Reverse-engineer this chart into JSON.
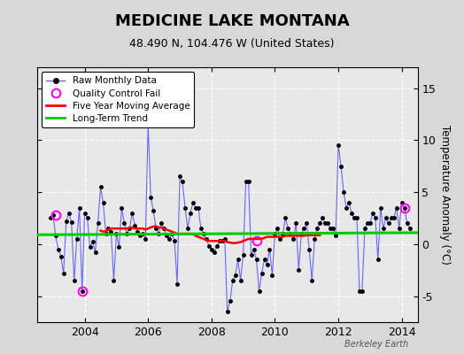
{
  "title": "MEDICINE LAKE MONTANA",
  "subtitle": "48.490 N, 104.476 W (United States)",
  "ylabel": "Temperature Anomaly (°C)",
  "credit": "Berkeley Earth",
  "bg_color": "#d8d8d8",
  "plot_bg_color": "#e8e8e8",
  "ylim": [
    -7.5,
    17
  ],
  "xlim": [
    2002.5,
    2014.5
  ],
  "yticks": [
    -5,
    0,
    5,
    10,
    15
  ],
  "xticks": [
    2004,
    2006,
    2008,
    2010,
    2012,
    2014
  ],
  "raw_data": [
    [
      2002.917,
      2.5
    ],
    [
      2003.0,
      2.8
    ],
    [
      2003.083,
      0.8
    ],
    [
      2003.167,
      -0.5
    ],
    [
      2003.25,
      -1.2
    ],
    [
      2003.333,
      -2.8
    ],
    [
      2003.417,
      2.2
    ],
    [
      2003.5,
      3.0
    ],
    [
      2003.583,
      2.1
    ],
    [
      2003.667,
      -3.5
    ],
    [
      2003.75,
      0.5
    ],
    [
      2003.833,
      3.5
    ],
    [
      2003.917,
      -4.5
    ],
    [
      2004.0,
      3.0
    ],
    [
      2004.083,
      2.5
    ],
    [
      2004.167,
      -0.3
    ],
    [
      2004.25,
      0.2
    ],
    [
      2004.333,
      -0.8
    ],
    [
      2004.417,
      2.0
    ],
    [
      2004.5,
      5.5
    ],
    [
      2004.583,
      4.0
    ],
    [
      2004.667,
      1.0
    ],
    [
      2004.75,
      1.5
    ],
    [
      2004.833,
      1.2
    ],
    [
      2004.917,
      -3.5
    ],
    [
      2005.0,
      1.0
    ],
    [
      2005.083,
      -0.3
    ],
    [
      2005.167,
      3.5
    ],
    [
      2005.25,
      2.0
    ],
    [
      2005.333,
      1.0
    ],
    [
      2005.417,
      1.5
    ],
    [
      2005.5,
      3.0
    ],
    [
      2005.583,
      1.8
    ],
    [
      2005.667,
      1.2
    ],
    [
      2005.75,
      0.8
    ],
    [
      2005.833,
      1.0
    ],
    [
      2005.917,
      0.5
    ],
    [
      2006.0,
      11.5
    ],
    [
      2006.083,
      4.5
    ],
    [
      2006.167,
      3.2
    ],
    [
      2006.25,
      1.5
    ],
    [
      2006.333,
      1.0
    ],
    [
      2006.417,
      2.0
    ],
    [
      2006.5,
      1.5
    ],
    [
      2006.583,
      0.8
    ],
    [
      2006.667,
      0.5
    ],
    [
      2006.75,
      1.0
    ],
    [
      2006.833,
      0.3
    ],
    [
      2006.917,
      -3.8
    ],
    [
      2007.0,
      6.5
    ],
    [
      2007.083,
      6.0
    ],
    [
      2007.167,
      3.5
    ],
    [
      2007.25,
      1.5
    ],
    [
      2007.333,
      3.0
    ],
    [
      2007.417,
      4.0
    ],
    [
      2007.5,
      3.5
    ],
    [
      2007.583,
      3.5
    ],
    [
      2007.667,
      1.5
    ],
    [
      2007.75,
      1.0
    ],
    [
      2007.833,
      0.5
    ],
    [
      2007.917,
      -0.2
    ],
    [
      2008.0,
      -0.5
    ],
    [
      2008.083,
      -0.8
    ],
    [
      2008.167,
      -0.2
    ],
    [
      2008.25,
      0.3
    ],
    [
      2008.333,
      0.3
    ],
    [
      2008.417,
      0.5
    ],
    [
      2008.5,
      -6.5
    ],
    [
      2008.583,
      -5.5
    ],
    [
      2008.667,
      -3.5
    ],
    [
      2008.75,
      -3.0
    ],
    [
      2008.833,
      -1.5
    ],
    [
      2008.917,
      -3.5
    ],
    [
      2009.0,
      -1.0
    ],
    [
      2009.083,
      6.0
    ],
    [
      2009.167,
      6.0
    ],
    [
      2009.25,
      -1.0
    ],
    [
      2009.333,
      -0.5
    ],
    [
      2009.417,
      -1.5
    ],
    [
      2009.5,
      -4.5
    ],
    [
      2009.583,
      -2.8
    ],
    [
      2009.667,
      -1.5
    ],
    [
      2009.75,
      -2.0
    ],
    [
      2009.833,
      -0.5
    ],
    [
      2009.917,
      -3.0
    ],
    [
      2010.0,
      1.0
    ],
    [
      2010.083,
      1.5
    ],
    [
      2010.167,
      0.5
    ],
    [
      2010.25,
      1.0
    ],
    [
      2010.333,
      2.5
    ],
    [
      2010.417,
      1.5
    ],
    [
      2010.5,
      1.0
    ],
    [
      2010.583,
      0.5
    ],
    [
      2010.667,
      2.0
    ],
    [
      2010.75,
      -2.5
    ],
    [
      2010.833,
      1.0
    ],
    [
      2010.917,
      1.5
    ],
    [
      2011.0,
      2.0
    ],
    [
      2011.083,
      -0.5
    ],
    [
      2011.167,
      -3.5
    ],
    [
      2011.25,
      0.5
    ],
    [
      2011.333,
      1.5
    ],
    [
      2011.417,
      2.0
    ],
    [
      2011.5,
      2.5
    ],
    [
      2011.583,
      2.0
    ],
    [
      2011.667,
      2.0
    ],
    [
      2011.75,
      1.5
    ],
    [
      2011.833,
      1.5
    ],
    [
      2011.917,
      0.8
    ],
    [
      2012.0,
      9.5
    ],
    [
      2012.083,
      7.5
    ],
    [
      2012.167,
      5.0
    ],
    [
      2012.25,
      3.5
    ],
    [
      2012.333,
      4.0
    ],
    [
      2012.417,
      3.0
    ],
    [
      2012.5,
      2.5
    ],
    [
      2012.583,
      2.5
    ],
    [
      2012.667,
      -4.5
    ],
    [
      2012.75,
      -4.5
    ],
    [
      2012.833,
      1.5
    ],
    [
      2012.917,
      2.0
    ],
    [
      2013.0,
      2.0
    ],
    [
      2013.083,
      3.0
    ],
    [
      2013.167,
      2.5
    ],
    [
      2013.25,
      -1.5
    ],
    [
      2013.333,
      3.5
    ],
    [
      2013.417,
      1.5
    ],
    [
      2013.5,
      2.5
    ],
    [
      2013.583,
      2.0
    ],
    [
      2013.667,
      2.5
    ],
    [
      2013.75,
      2.5
    ],
    [
      2013.833,
      3.5
    ],
    [
      2013.917,
      1.5
    ],
    [
      2014.0,
      4.0
    ],
    [
      2014.083,
      3.5
    ],
    [
      2014.167,
      2.0
    ],
    [
      2014.25,
      1.5
    ]
  ],
  "qc_fail_points": [
    [
      2003.083,
      2.8
    ],
    [
      2003.917,
      -4.5
    ],
    [
      2009.417,
      0.3
    ],
    [
      2014.083,
      3.5
    ]
  ],
  "moving_avg": [
    [
      2004.5,
      1.3
    ],
    [
      2004.583,
      1.2
    ],
    [
      2004.667,
      1.25
    ],
    [
      2004.75,
      1.4
    ],
    [
      2004.833,
      1.5
    ],
    [
      2004.917,
      1.5
    ],
    [
      2005.0,
      1.5
    ],
    [
      2005.083,
      1.5
    ],
    [
      2005.167,
      1.5
    ],
    [
      2005.25,
      1.5
    ],
    [
      2005.333,
      1.5
    ],
    [
      2005.417,
      1.6
    ],
    [
      2005.5,
      1.6
    ],
    [
      2005.583,
      1.5
    ],
    [
      2005.667,
      1.5
    ],
    [
      2005.75,
      1.5
    ],
    [
      2005.833,
      1.5
    ],
    [
      2005.917,
      1.4
    ],
    [
      2006.0,
      1.5
    ],
    [
      2006.083,
      1.6
    ],
    [
      2006.167,
      1.7
    ],
    [
      2006.25,
      1.7
    ],
    [
      2006.333,
      1.6
    ],
    [
      2006.417,
      1.6
    ],
    [
      2006.5,
      1.5
    ],
    [
      2006.583,
      1.4
    ],
    [
      2006.667,
      1.3
    ],
    [
      2006.75,
      1.2
    ],
    [
      2006.833,
      1.1
    ],
    [
      2006.917,
      1.0
    ],
    [
      2007.0,
      1.0
    ],
    [
      2007.083,
      1.0
    ],
    [
      2007.167,
      1.0
    ],
    [
      2007.25,
      1.0
    ],
    [
      2007.333,
      1.0
    ],
    [
      2007.417,
      1.0
    ],
    [
      2007.5,
      0.8
    ],
    [
      2007.583,
      0.7
    ],
    [
      2007.667,
      0.6
    ],
    [
      2007.75,
      0.5
    ],
    [
      2007.833,
      0.4
    ],
    [
      2007.917,
      0.3
    ],
    [
      2008.0,
      0.3
    ],
    [
      2008.083,
      0.3
    ],
    [
      2008.167,
      0.3
    ],
    [
      2008.25,
      0.3
    ],
    [
      2008.333,
      0.3
    ],
    [
      2008.417,
      0.3
    ],
    [
      2008.5,
      0.2
    ],
    [
      2008.583,
      0.15
    ],
    [
      2008.667,
      0.1
    ],
    [
      2008.75,
      0.1
    ],
    [
      2008.833,
      0.15
    ],
    [
      2008.917,
      0.2
    ],
    [
      2009.0,
      0.3
    ],
    [
      2009.083,
      0.4
    ],
    [
      2009.167,
      0.5
    ],
    [
      2009.25,
      0.5
    ],
    [
      2009.333,
      0.5
    ],
    [
      2009.417,
      0.5
    ],
    [
      2009.5,
      0.5
    ],
    [
      2009.583,
      0.5
    ],
    [
      2009.667,
      0.6
    ],
    [
      2009.75,
      0.7
    ],
    [
      2009.833,
      0.7
    ],
    [
      2009.917,
      0.7
    ],
    [
      2010.0,
      0.7
    ],
    [
      2010.083,
      0.7
    ],
    [
      2010.167,
      0.7
    ],
    [
      2010.25,
      0.7
    ],
    [
      2010.333,
      0.8
    ],
    [
      2010.417,
      0.8
    ],
    [
      2010.5,
      0.8
    ],
    [
      2010.583,
      0.8
    ],
    [
      2010.667,
      0.8
    ],
    [
      2010.75,
      0.8
    ],
    [
      2010.833,
      0.8
    ],
    [
      2010.917,
      0.8
    ],
    [
      2011.0,
      0.85
    ],
    [
      2011.083,
      0.85
    ],
    [
      2011.167,
      0.85
    ],
    [
      2011.25,
      0.85
    ],
    [
      2011.333,
      0.85
    ],
    [
      2011.417,
      0.85
    ]
  ],
  "trend_line": [
    [
      2002.5,
      0.9
    ],
    [
      2014.5,
      1.1
    ]
  ],
  "line_color": "#6666ff",
  "marker_color": "#000000",
  "qc_color": "#ff00ff",
  "mavg_color": "#ff0000",
  "trend_color": "#00cc00"
}
